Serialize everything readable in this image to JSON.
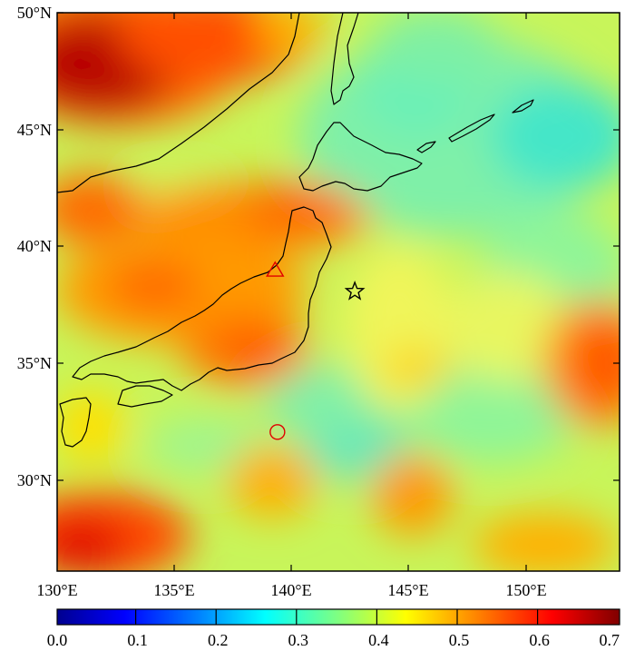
{
  "map": {
    "lat_labels": [
      "50°N",
      "45°N",
      "40°N",
      "35°N",
      "30°N"
    ],
    "lon_labels": [
      "130°E",
      "135°E",
      "140°E",
      "145°E",
      "150°E"
    ],
    "lat_range": [
      26.1,
      50
    ],
    "lon_range": [
      130,
      154
    ],
    "markers": [
      {
        "name": "triangle-marker",
        "shape": "triangle",
        "lon": 139.3,
        "lat": 39.0,
        "color": "#e00000"
      },
      {
        "name": "star-marker",
        "shape": "star",
        "lon": 142.7,
        "lat": 38.1,
        "color": "#000000"
      },
      {
        "name": "circle-marker",
        "shape": "circle",
        "lon": 139.4,
        "lat": 32.1,
        "color": "#e00000"
      }
    ]
  },
  "colorbar": {
    "min": 0.0,
    "max": 0.7,
    "labels": [
      "0.0",
      "0.1",
      "0.2",
      "0.3",
      "0.4",
      "0.5",
      "0.6",
      "0.7"
    ],
    "colormap": [
      "#00008f",
      "#0000ff",
      "#0080ff",
      "#00ffff",
      "#80ff80",
      "#ffff00",
      "#ff8000",
      "#ff0000",
      "#800000"
    ]
  }
}
